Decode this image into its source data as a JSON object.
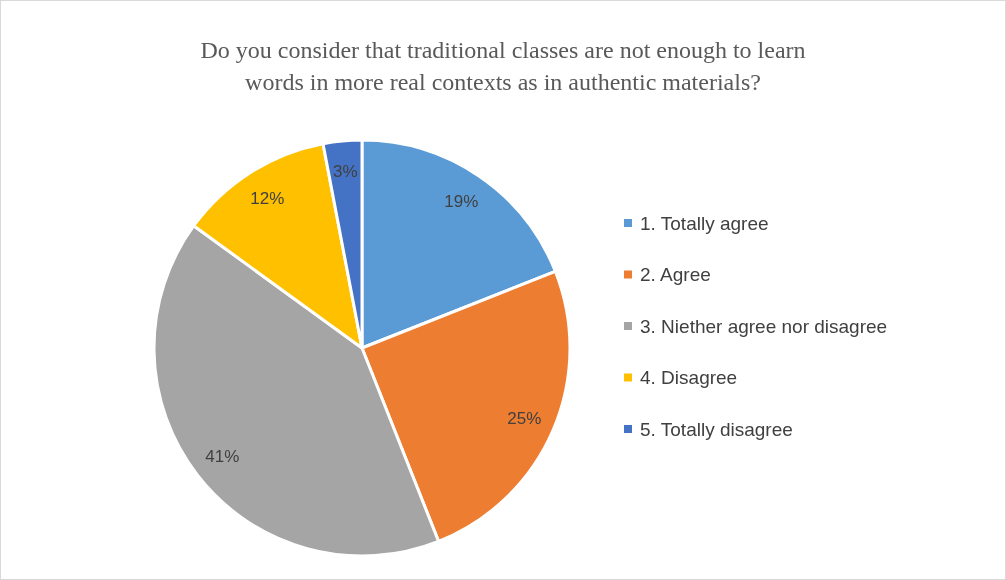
{
  "chart_data": {
    "type": "pie",
    "title": "Do you consider that traditional classes are not enough to learn words in more real contexts as in authentic materials?",
    "categories": [
      "1. Totally agree",
      "2. Agree",
      "3. Niether agree nor disagree",
      "4. Disagree",
      "5. Totally disagree"
    ],
    "values": [
      19,
      25,
      41,
      12,
      3
    ],
    "colors": [
      "#5b9bd5",
      "#ed7d31",
      "#a5a5a5",
      "#ffc000",
      "#4472c4"
    ],
    "value_labels": [
      "19%",
      "25%",
      "41%",
      "12%",
      "3%"
    ],
    "legend": "right"
  }
}
